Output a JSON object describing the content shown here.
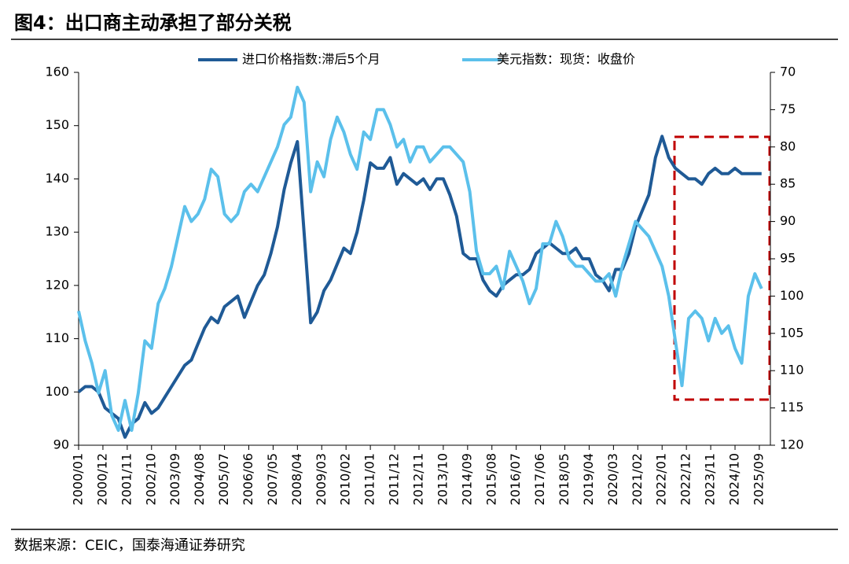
{
  "chart_data": {
    "type": "line",
    "title": "图4：出口商主动承担了部分关税",
    "source": "数据来源：CEIC，国泰海通证券研究",
    "x": [
      "2000/01",
      "2000/04",
      "2000/07",
      "2000/10",
      "2001/01",
      "2001/04",
      "2001/07",
      "2001/10",
      "2002/01",
      "2002/04",
      "2002/07",
      "2002/10",
      "2003/01",
      "2003/04",
      "2003/07",
      "2003/10",
      "2004/01",
      "2004/04",
      "2004/07",
      "2004/10",
      "2005/01",
      "2005/04",
      "2005/07",
      "2005/10",
      "2006/01",
      "2006/04",
      "2006/07",
      "2006/10",
      "2007/01",
      "2007/04",
      "2007/07",
      "2007/10",
      "2008/01",
      "2008/04",
      "2008/07",
      "2008/10",
      "2009/01",
      "2009/04",
      "2009/07",
      "2009/10",
      "2010/01",
      "2010/04",
      "2010/07",
      "2010/10",
      "2011/01",
      "2011/04",
      "2011/07",
      "2011/10",
      "2012/01",
      "2012/04",
      "2012/07",
      "2012/10",
      "2013/01",
      "2013/04",
      "2013/07",
      "2013/10",
      "2014/01",
      "2014/04",
      "2014/07",
      "2014/10",
      "2015/01",
      "2015/04",
      "2015/07",
      "2015/10",
      "2016/01",
      "2016/04",
      "2016/07",
      "2016/10",
      "2017/01",
      "2017/04",
      "2017/07",
      "2017/10",
      "2018/01",
      "2018/04",
      "2018/07",
      "2018/10",
      "2019/01",
      "2019/04",
      "2019/07",
      "2019/10",
      "2020/01",
      "2020/04",
      "2020/07",
      "2020/10",
      "2021/01",
      "2021/04",
      "2021/07",
      "2021/10",
      "2022/01",
      "2022/04",
      "2022/07",
      "2022/10",
      "2023/01",
      "2023/04",
      "2023/07",
      "2023/10",
      "2024/01",
      "2024/04",
      "2024/07",
      "2024/10",
      "2025/01",
      "2025/04",
      "2025/07",
      "2025/10"
    ],
    "series": [
      {
        "name": "进口价格指数:滞后5个月",
        "color": "#1f5a96",
        "axis": "y",
        "values": [
          100,
          101,
          101,
          100,
          97,
          96,
          95,
          91.5,
          94,
          95,
          98,
          96,
          97,
          99,
          101,
          103,
          105,
          106,
          109,
          112,
          114,
          113,
          116,
          117,
          118,
          114,
          117,
          120,
          122,
          126,
          131,
          138,
          143,
          147,
          130,
          113,
          115,
          119,
          121,
          124,
          127,
          126,
          130,
          136,
          143,
          142,
          142,
          144,
          139,
          141,
          140,
          139,
          140,
          138,
          140,
          140,
          137,
          133,
          126,
          125,
          125,
          121,
          119,
          118,
          120,
          121,
          122,
          122,
          123,
          126,
          127,
          128,
          127,
          126,
          126,
          127,
          125,
          125,
          122,
          121,
          119,
          123,
          123,
          126,
          131,
          134,
          137,
          144,
          148,
          144,
          142,
          141,
          140,
          140,
          139,
          141,
          142,
          141,
          141,
          142,
          141,
          141,
          141,
          141
        ]
      },
      {
        "name": "美元指数：现货：收盘价",
        "color": "#5bc0eb",
        "axis": "y2",
        "values": [
          102,
          106,
          109,
          113,
          110,
          116,
          118,
          114,
          118,
          113,
          106,
          107,
          101,
          99,
          96,
          92,
          88,
          90,
          89,
          87,
          83,
          84,
          89,
          90,
          89,
          86,
          85,
          86,
          84,
          82,
          80,
          77,
          76,
          72,
          74,
          86,
          82,
          84,
          79,
          76,
          78,
          81,
          83,
          78,
          79,
          75,
          75,
          77,
          80,
          79,
          82,
          80,
          80,
          82,
          81,
          80,
          80,
          81,
          82,
          86,
          94,
          97,
          97,
          96,
          99,
          94,
          96,
          98,
          101,
          99,
          93,
          93,
          90,
          92,
          95,
          96,
          96,
          97,
          98,
          98,
          97,
          100,
          96,
          93,
          90,
          91,
          92,
          94,
          96,
          100,
          106,
          112,
          103,
          102,
          103,
          106,
          103,
          105,
          104,
          107,
          109,
          100,
          97,
          99
        ]
      }
    ],
    "xticks": [
      "2000/01",
      "2000/12",
      "2001/11",
      "2002/10",
      "2003/09",
      "2004/08",
      "2005/07",
      "2006/06",
      "2007/05",
      "2008/04",
      "2009/03",
      "2010/02",
      "2011/01",
      "2011/12",
      "2012/11",
      "2013/10",
      "2014/09",
      "2015/08",
      "2016/07",
      "2017/06",
      "2018/05",
      "2019/04",
      "2020/03",
      "2021/02",
      "2022/01",
      "2022/12",
      "2023/11",
      "2024/10",
      "2025/09"
    ],
    "ylim": [
      90,
      160
    ],
    "yticks": [
      90,
      100,
      110,
      120,
      130,
      140,
      150,
      160
    ],
    "y2lim": [
      120,
      70
    ],
    "y2ticks": [
      120,
      115,
      110,
      105,
      100,
      95,
      90,
      85,
      80,
      75,
      70
    ],
    "legend": "top"
  }
}
